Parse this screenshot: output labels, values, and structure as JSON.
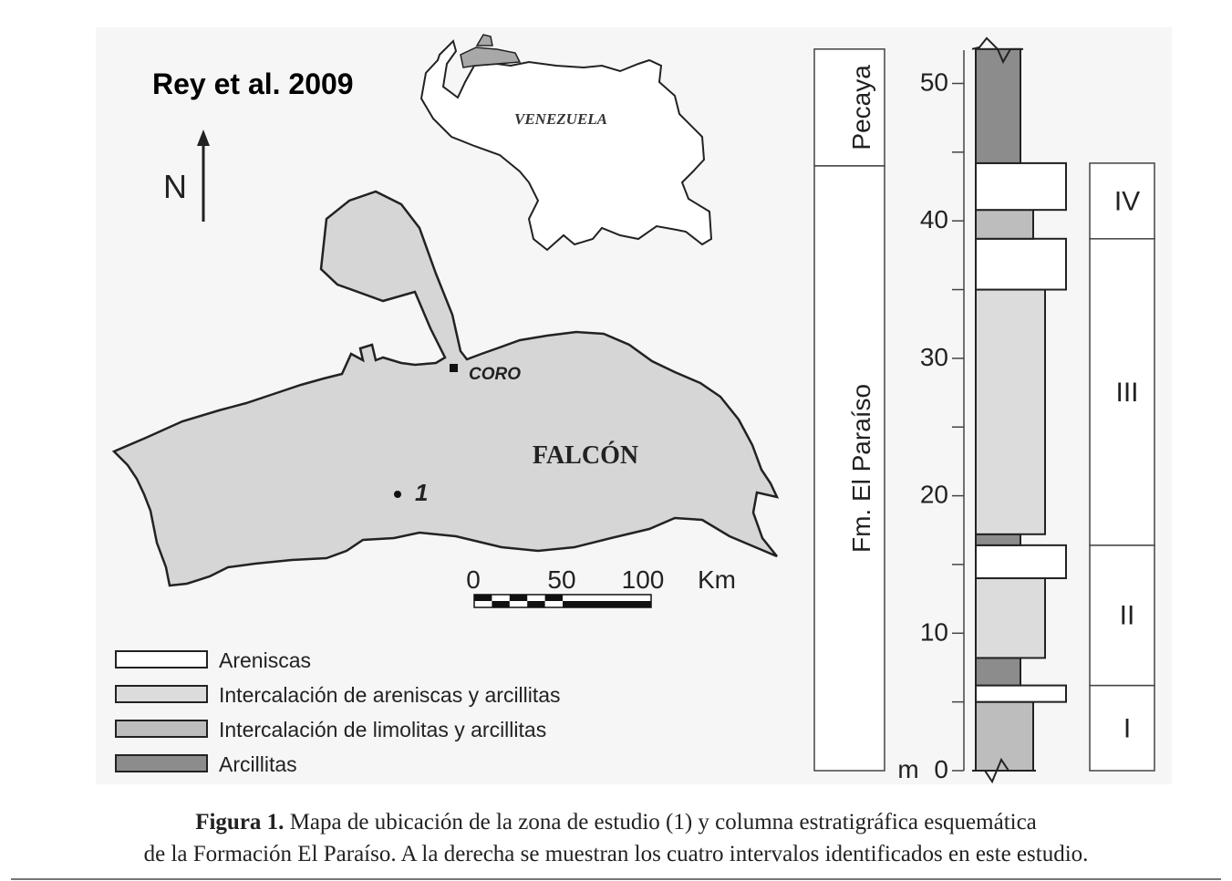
{
  "author_label": "Rey et al. 2009",
  "north_label": "N",
  "country_label": "VENEZUELA",
  "city_label": "CORO",
  "state_label": "FALCÓN",
  "site_label": "1",
  "scale": {
    "ticks": [
      "0",
      "50",
      "100"
    ],
    "unit": "Km"
  },
  "legend": [
    {
      "label": "Areniscas",
      "color": "#ffffff"
    },
    {
      "label": "Intercalación de areniscas y arcillitas",
      "color": "#dcdcdc"
    },
    {
      "label": "Intercalación de limolitas y arcillitas",
      "color": "#bdbdbd"
    },
    {
      "label": "Arcillitas",
      "color": "#8c8c8c"
    }
  ],
  "formations": [
    {
      "name": "Pecaya",
      "from_m": 44,
      "to_m": 52.5
    },
    {
      "name": "Fm. El Paraíso",
      "from_m": 0,
      "to_m": 44
    }
  ],
  "depth_axis": {
    "unit_label": "m",
    "ticks": [
      "0",
      "10",
      "20",
      "30",
      "40",
      "50"
    ],
    "range_m": [
      0,
      52.5
    ]
  },
  "intervals": [
    {
      "label": "I",
      "from_m": 0,
      "to_m": 6.2
    },
    {
      "label": "II",
      "from_m": 6.2,
      "to_m": 16.4
    },
    {
      "label": "III",
      "from_m": 16.4,
      "to_m": 38.7
    },
    {
      "label": "IV",
      "from_m": 38.7,
      "to_m": 44.2
    }
  ],
  "column_layers": [
    {
      "lithology": "Intercalación de limolitas y arcillitas",
      "from_m": 0,
      "to_m": 5,
      "color": "#bdbdbd"
    },
    {
      "lithology": "Areniscas",
      "from_m": 5,
      "to_m": 6.2,
      "color": "#ffffff"
    },
    {
      "lithology": "Arcillitas",
      "from_m": 6.2,
      "to_m": 8.2,
      "color": "#8c8c8c"
    },
    {
      "lithology": "Intercalación de areniscas y arcillitas",
      "from_m": 8.2,
      "to_m": 14,
      "color": "#dcdcdc"
    },
    {
      "lithology": "Areniscas",
      "from_m": 14,
      "to_m": 16.4,
      "color": "#ffffff"
    },
    {
      "lithology": "Arcillitas",
      "from_m": 16.4,
      "to_m": 17.2,
      "color": "#8c8c8c"
    },
    {
      "lithology": "Intercalación de areniscas y arcillitas",
      "from_m": 17.2,
      "to_m": 35,
      "color": "#dcdcdc"
    },
    {
      "lithology": "Areniscas",
      "from_m": 35,
      "to_m": 38.7,
      "color": "#ffffff"
    },
    {
      "lithology": "Intercalación de limolitas y arcillitas",
      "from_m": 38.7,
      "to_m": 40.8,
      "color": "#bdbdbd"
    },
    {
      "lithology": "Areniscas",
      "from_m": 40.8,
      "to_m": 44.2,
      "color": "#ffffff"
    },
    {
      "lithology": "Arcillitas",
      "from_m": 44.2,
      "to_m": 52.5,
      "color": "#8c8c8c"
    }
  ],
  "caption": {
    "bold": "Figura 1.",
    "line1": " Mapa de ubicación de la zona de estudio (1) y columna estratigráfica esquemática",
    "line2": "de la Formación El Paraíso. A la derecha se muestran los cuatro intervalos identificados en este estudio."
  }
}
